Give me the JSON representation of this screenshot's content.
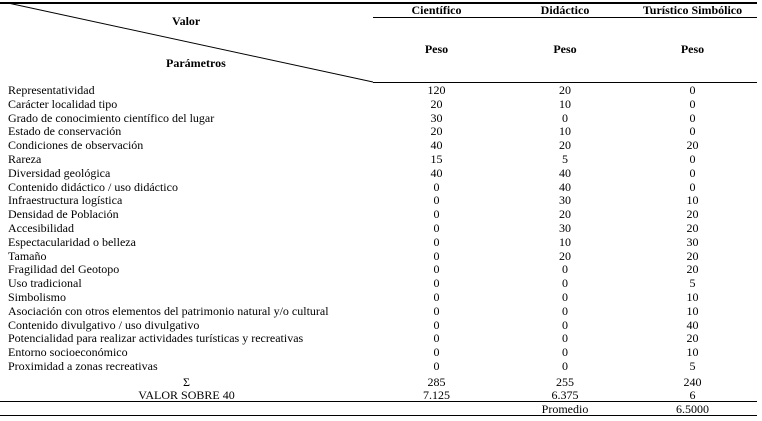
{
  "header": {
    "valor": "Valor",
    "parametros": "Parámetros",
    "columns": [
      "Científico",
      "Didáctico",
      "Turístico Simbólico"
    ],
    "sub": "Peso"
  },
  "rows": [
    {
      "p": "Representatividad",
      "v": [
        "120",
        "20",
        "0"
      ]
    },
    {
      "p": "Carácter localidad tipo",
      "v": [
        "20",
        "10",
        "0"
      ]
    },
    {
      "p": "Grado de conocimiento científico del lugar",
      "v": [
        "30",
        "0",
        "0"
      ]
    },
    {
      "p": "Estado de conservación",
      "v": [
        "20",
        "10",
        "0"
      ]
    },
    {
      "p": "Condiciones de observación",
      "v": [
        "40",
        "20",
        "20"
      ]
    },
    {
      "p": "Rareza",
      "v": [
        "15",
        "5",
        "0"
      ]
    },
    {
      "p": "Diversidad geológica",
      "v": [
        "40",
        "40",
        "0"
      ]
    },
    {
      "p": "Contenido didáctico / uso didáctico",
      "v": [
        "0",
        "40",
        "0"
      ]
    },
    {
      "p": "Infraestructura logística",
      "v": [
        "0",
        "30",
        "10"
      ]
    },
    {
      "p": "Densidad de Población",
      "v": [
        "0",
        "20",
        "20"
      ]
    },
    {
      "p": "Accesibilidad",
      "v": [
        "0",
        "30",
        "20"
      ]
    },
    {
      "p": "Espectacularidad o belleza",
      "v": [
        "0",
        "10",
        "30"
      ]
    },
    {
      "p": "Tamaño",
      "v": [
        "0",
        "20",
        "20"
      ]
    },
    {
      "p": "Fragilidad del Geotopo",
      "v": [
        "0",
        "0",
        "20"
      ]
    },
    {
      "p": "Uso tradicional",
      "v": [
        "0",
        "0",
        "5"
      ]
    },
    {
      "p": "Simbolismo",
      "v": [
        "0",
        "0",
        "10"
      ]
    },
    {
      "p": "Asociación con otros elementos del patrimonio natural y/o cultural",
      "v": [
        "0",
        "0",
        "10"
      ]
    },
    {
      "p": "Contenido divulgativo / uso divulgativo",
      "v": [
        "0",
        "0",
        "40"
      ]
    },
    {
      "p": "Potencialidad para realizar actividades turísticas y recreativas",
      "v": [
        "0",
        "0",
        "20"
      ]
    },
    {
      "p": "Entorno socioeconómico",
      "v": [
        "0",
        "0",
        "10"
      ]
    },
    {
      "p": "Proximidad a zonas recreativas",
      "v": [
        "0",
        "0",
        "5"
      ]
    }
  ],
  "sum": {
    "label": "Σ",
    "v": [
      "285",
      "255",
      "240"
    ]
  },
  "valor40": {
    "label": "VALOR SOBRE 40",
    "v": [
      "7.125",
      "6.375",
      "6"
    ]
  },
  "promedio": {
    "label": "Promedio",
    "value": "6.5000"
  }
}
